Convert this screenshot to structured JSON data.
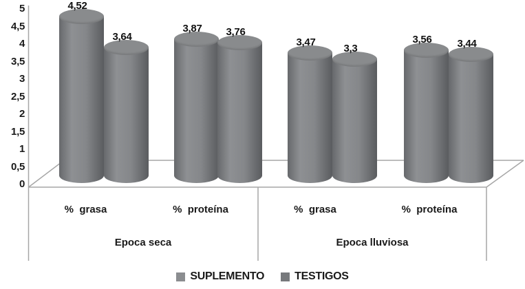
{
  "chart_data": {
    "type": "bar",
    "style": "3d-cylinder",
    "title": "",
    "background": "#ffffff",
    "decimal_separator": ",",
    "y_axis": {
      "min": 0,
      "max": 5,
      "step": 0.5,
      "tick_labels": [
        "0",
        "0,5",
        "1",
        "1,5",
        "2",
        "2,5",
        "3",
        "3,5",
        "4",
        "4,5",
        "5"
      ]
    },
    "grid": "off",
    "legend": {
      "position": "bottom"
    },
    "series": [
      {
        "name": "SUPLEMENTO",
        "color": "#8b8d90"
      },
      {
        "name": "TESTIGOS",
        "color": "#77797c"
      }
    ],
    "groups": [
      {
        "label": "Epoca seca",
        "subgroups": [
          {
            "label": "%  grasa",
            "values": [
              4.52,
              3.64
            ],
            "value_labels": [
              "4,52",
              "3,64"
            ]
          },
          {
            "label": "%  proteína",
            "values": [
              3.87,
              3.76
            ],
            "value_labels": [
              "3,87",
              "3,76"
            ]
          }
        ]
      },
      {
        "label": "Epoca lluviosa",
        "subgroups": [
          {
            "label": "%  grasa",
            "values": [
              3.47,
              3.3
            ],
            "value_labels": [
              "3,47",
              "3,3"
            ]
          },
          {
            "label": "%  proteína",
            "values": [
              3.56,
              3.44
            ],
            "value_labels": [
              "3,56",
              "3,44"
            ]
          }
        ]
      }
    ]
  }
}
